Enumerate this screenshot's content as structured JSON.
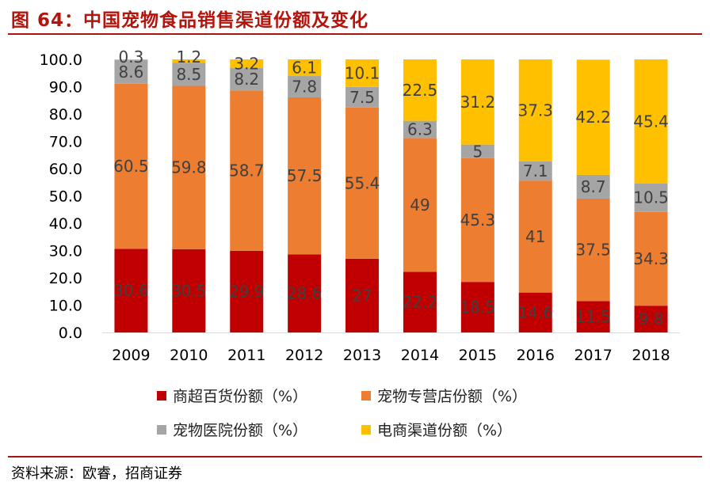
{
  "header": {
    "title": "图 64：中国宠物食品销售渠道份额及变化"
  },
  "footer": {
    "source": "资料来源：欧睿，招商证券"
  },
  "colors": {
    "title": "#b3140c",
    "rule": "#a8140f",
    "series": [
      "#c00000",
      "#ed7d31",
      "#a5a5a5",
      "#ffc000"
    ]
  },
  "chart_data": {
    "type": "bar",
    "stacked": true,
    "categories": [
      "2009",
      "2010",
      "2011",
      "2012",
      "2013",
      "2014",
      "2015",
      "2016",
      "2017",
      "2018"
    ],
    "ylim": [
      0,
      100
    ],
    "yticks": [
      "0.0",
      "10.0",
      "20.0",
      "30.0",
      "40.0",
      "50.0",
      "60.0",
      "70.0",
      "80.0",
      "90.0",
      "100.0"
    ],
    "grid": false,
    "legend_position": "bottom",
    "series": [
      {
        "name": "商超百货份额（%）",
        "color": "#c00000",
        "values": [
          30.6,
          30.5,
          29.9,
          28.6,
          27,
          22.2,
          18.5,
          14.6,
          11.5,
          9.8
        ],
        "labels": [
          "30.6",
          "30.5",
          "29.9",
          "28.6",
          "27",
          "22.2",
          "18.5",
          "14.6",
          "11.5",
          "9.8"
        ]
      },
      {
        "name": "宠物专营店份额（%）",
        "color": "#ed7d31",
        "values": [
          60.5,
          59.8,
          58.7,
          57.5,
          55.4,
          49,
          45.3,
          41,
          37.5,
          34.3
        ],
        "labels": [
          "60.5",
          "59.8",
          "58.7",
          "57.5",
          "55.4",
          "49",
          "45.3",
          "41",
          "37.5",
          "34.3"
        ]
      },
      {
        "name": "宠物医院份额（%）",
        "color": "#a5a5a5",
        "values": [
          8.6,
          8.5,
          8.2,
          7.8,
          7.5,
          6.3,
          5,
          7.1,
          8.7,
          10.5
        ],
        "labels": [
          "8.6",
          "8.5",
          "8.2",
          "7.8",
          "7.5",
          "6.3",
          "5",
          "7.1",
          "8.7",
          "10.5"
        ]
      },
      {
        "name": "电商渠道份额（%）",
        "color": "#ffc000",
        "values": [
          0.3,
          1.2,
          3.2,
          6.1,
          10.1,
          22.5,
          31.2,
          37.3,
          42.2,
          45.4
        ],
        "labels": [
          "0.3",
          "1.2",
          "3.2",
          "6.1",
          "10.1",
          "22.5",
          "31.2",
          "37.3",
          "42.2",
          "45.4"
        ]
      }
    ]
  }
}
